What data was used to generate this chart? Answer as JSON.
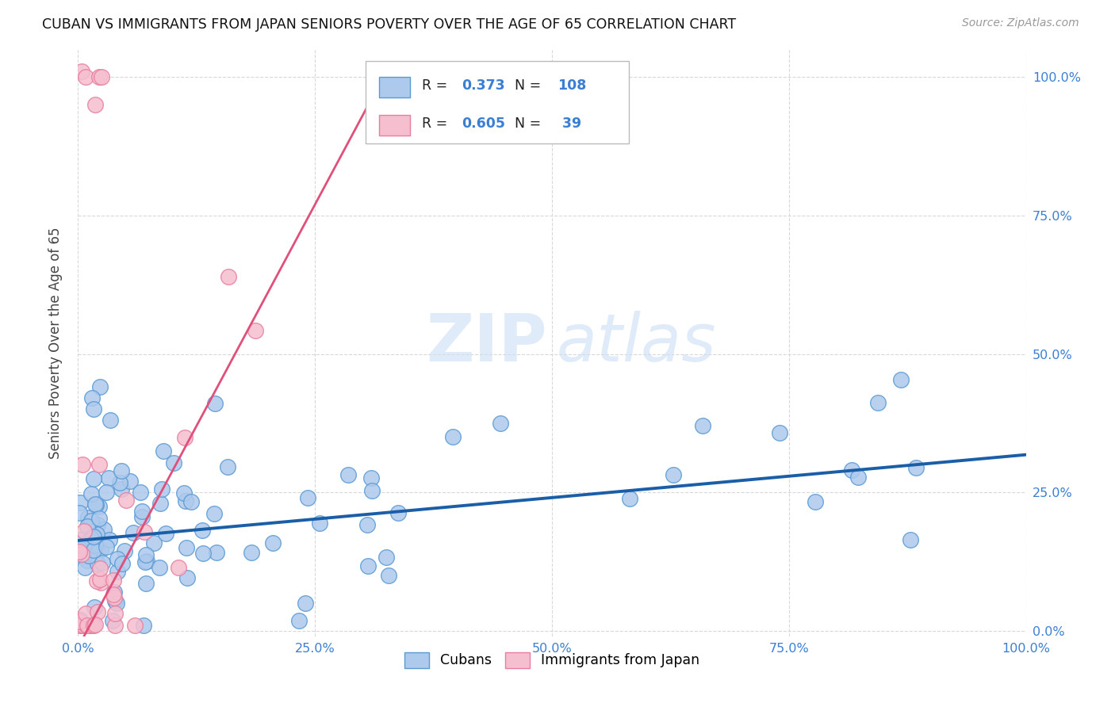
{
  "title": "CUBAN VS IMMIGRANTS FROM JAPAN SENIORS POVERTY OVER THE AGE OF 65 CORRELATION CHART",
  "source": "Source: ZipAtlas.com",
  "ylabel": "Seniors Poverty Over the Age of 65",
  "x_tick_labels": [
    "0.0%",
    "25.0%",
    "50.0%",
    "75.0%",
    "100.0%"
  ],
  "y_tick_labels": [
    "0.0%",
    "25.0%",
    "50.0%",
    "75.0%",
    "100.0%"
  ],
  "grid_color": "#d8d8d8",
  "background_color": "#ffffff",
  "cubans_color": "#adc9ec",
  "cubans_edge_color": "#5b9bd5",
  "japan_color": "#f5bfcf",
  "japan_edge_color": "#e87fa0",
  "trend_blue": "#1a5ea8",
  "trend_pink": "#e0507a",
  "R_cubans": "0.373",
  "N_cubans": "108",
  "R_japan": "0.605",
  "N_japan": " 39",
  "blue_intercept": 0.163,
  "blue_slope": 0.155,
  "pink_intercept": -0.03,
  "pink_slope": 3.2,
  "watermark_zip": "ZIP",
  "watermark_atlas": "atlas",
  "legend_label1": "Cubans",
  "legend_label2": "Immigrants from Japan"
}
